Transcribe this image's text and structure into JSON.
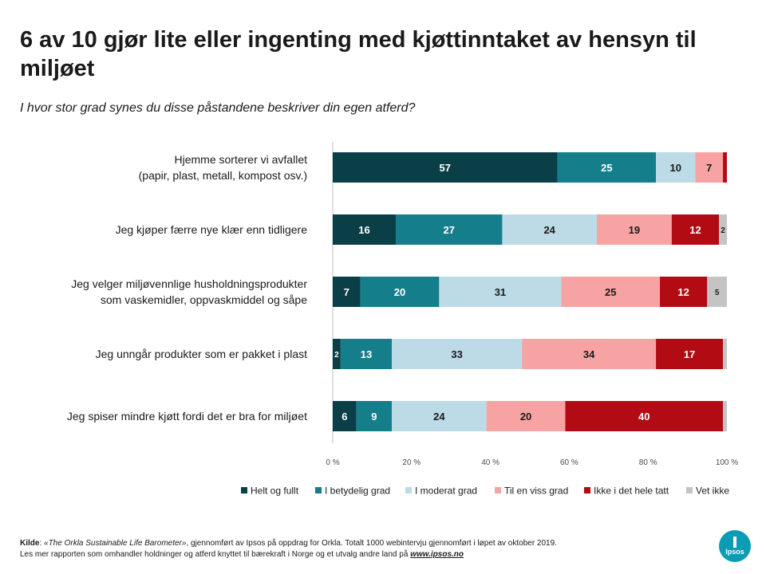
{
  "header": {
    "title": "6 av 10 gjør lite eller ingenting med kjøttinntaket av hensyn til miljøet",
    "subtitle": "I hvor stor grad synes du disse påstandene beskriver din egen atferd?"
  },
  "chart_data": {
    "type": "bar",
    "orientation": "horizontal",
    "stacked": true,
    "categories": [
      [
        "Hjemme sorterer vi avfallet",
        "(papir, plast, metall, kompost osv.)"
      ],
      [
        "Jeg kjøper færre nye klær enn tidligere"
      ],
      [
        "Jeg velger miljøvennlige husholdningsprodukter",
        "som vaskemidler, oppvaskmiddel og såpe"
      ],
      [
        "Jeg unngår produkter som er pakket i plast"
      ],
      [
        "Jeg spiser mindre kjøtt fordi det er bra for miljøet"
      ]
    ],
    "series": [
      {
        "name": "Helt og fullt",
        "color": "#0b3f47",
        "values": [
          57,
          16,
          7,
          2,
          6
        ]
      },
      {
        "name": "I betydelig grad",
        "color": "#157e8b",
        "values": [
          25,
          27,
          20,
          13,
          9
        ]
      },
      {
        "name": "I moderat grad",
        "color": "#bcdbe6",
        "values": [
          10,
          24,
          31,
          33,
          24
        ]
      },
      {
        "name": "Til en viss grad",
        "color": "#f7a3a3",
        "values": [
          7,
          19,
          25,
          34,
          20
        ]
      },
      {
        "name": "Ikke i det hele tatt",
        "color": "#b30b14",
        "values": [
          1,
          12,
          12,
          17,
          40
        ]
      },
      {
        "name": "Vet ikke",
        "color": "#c4c4c4",
        "values": [
          0,
          2,
          5,
          1,
          1
        ]
      }
    ],
    "data_labels": [
      [
        "57",
        "25",
        "10",
        "7",
        "",
        ""
      ],
      [
        "16",
        "27",
        "24",
        "19",
        "12",
        "2"
      ],
      [
        "7",
        "20",
        "31",
        "25",
        "12",
        "5"
      ],
      [
        "2",
        "13",
        "33",
        "34",
        "17",
        ""
      ],
      [
        "6",
        "9",
        "24",
        "20",
        "40",
        ""
      ]
    ],
    "xlim": [
      0,
      100
    ],
    "xticks": [
      "0 %",
      "20 %",
      "40 %",
      "60 %",
      "80 %",
      "100 %"
    ],
    "legend_position": "bottom-right",
    "grid": false
  },
  "footer": {
    "source_label": "Kilde",
    "source_title": "«The Orkla Sustainable Life Barometer»",
    "source_rest": ", gjennomført av Ipsos på oppdrag for Orkla. Totalt 1000 webintervju gjennomført i løpet av oktober 2019.",
    "line2": "Les mer rapporten som omhandler holdninger og atferd knyttet til bærekraft i Norge og et utvalg andre land på ",
    "link": "www.ipsos.no"
  },
  "logo": {
    "text": "Ipsos"
  }
}
